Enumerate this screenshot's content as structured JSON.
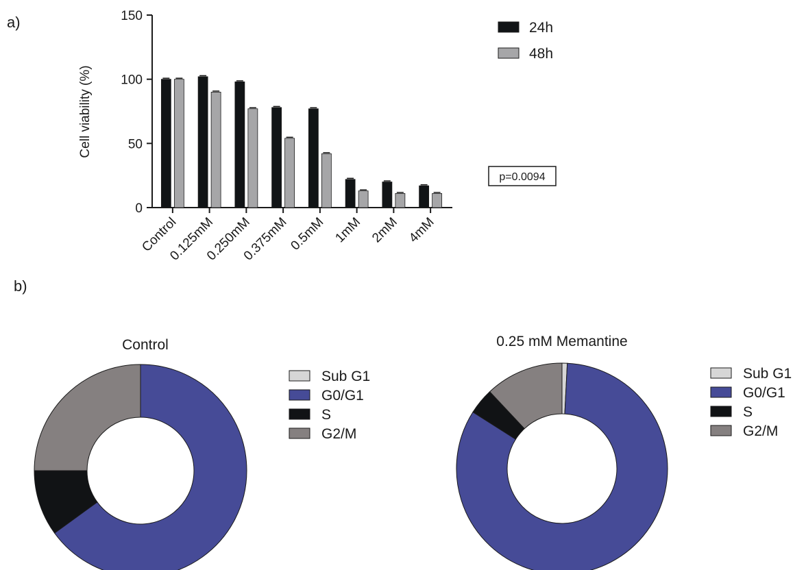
{
  "panels": {
    "a_label": "a)",
    "b_label": "b)"
  },
  "colors": {
    "24h": "#111416",
    "48h": "#a6a6a8",
    "sub_g1": "#d6d6d6",
    "g0_g1": "#464b97",
    "s": "#111315",
    "g2_m": "#858080",
    "axis": "#1a1a1a"
  },
  "chart_data": [
    {
      "type": "bar",
      "title": "",
      "xlabel": "",
      "ylabel": "Cell viability (%)",
      "ylim": [
        0,
        150
      ],
      "yticks": [
        0,
        50,
        100,
        150
      ],
      "categories": [
        "Control",
        "0.125mM",
        "0.250mM",
        "0.375mM",
        "0.5mM",
        "1mM",
        "2mM",
        "4mM"
      ],
      "series": [
        {
          "name": "24h",
          "values": [
            100,
            102,
            98,
            78,
            77,
            22,
            20,
            17
          ]
        },
        {
          "name": "48h",
          "values": [
            100,
            90,
            77,
            54,
            42,
            13,
            11,
            11
          ]
        }
      ],
      "annotation": "p=0.0094",
      "legend_position": "top-right",
      "grid": false
    },
    {
      "type": "pie",
      "title": "Control",
      "labels": [
        "Sub G1",
        "G0/G1",
        "S",
        "G2/M"
      ],
      "values": [
        0,
        65,
        10,
        25
      ],
      "legend_position": "right"
    },
    {
      "type": "pie",
      "title": "0.25 mM Memantine",
      "labels": [
        "Sub G1",
        "G0/G1",
        "S",
        "G2/M"
      ],
      "values": [
        0.8,
        83.2,
        4,
        12
      ],
      "legend_position": "right"
    }
  ]
}
